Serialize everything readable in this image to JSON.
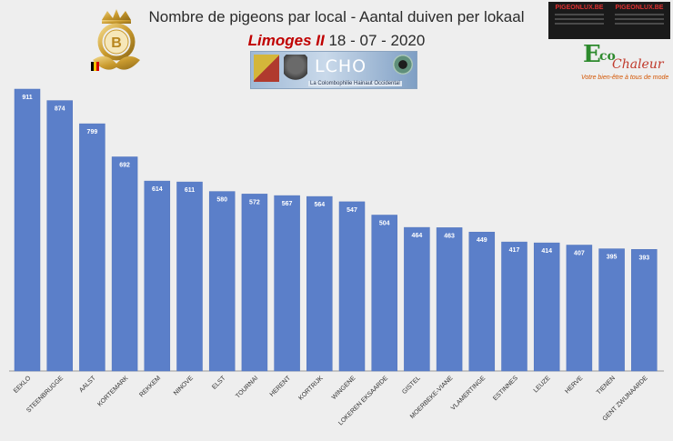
{
  "header": {
    "title": "Nombre de pigeons par local - Aantal duiven per lokaal",
    "race": "Limoges II",
    "date": "18 - 07 - 2020"
  },
  "logos": {
    "left_crest_letter": "B",
    "banner_name": "LCHO",
    "banner_tagline": "La Colombophilie Hainaut Occidental",
    "sponsor_left": "PIGEONLUX.BE",
    "sponsor_right": "PIGEONLUX.BE",
    "eco_e": "E",
    "eco_co": "co",
    "eco_chaleur": "Chaleur",
    "eco_slogan": "Votre bien-être à tous de mode"
  },
  "colors": {
    "bar": "#5b7fc9",
    "bar_edge": "#4f72bb"
  },
  "chart_data": {
    "type": "bar",
    "title": "Nombre de pigeons par local - Aantal duiven per lokaal",
    "categories": [
      "EEKLO",
      "STEENBRUGGE",
      "AALST",
      "KORTEMARK",
      "REKKEM",
      "NINOVE",
      "ELST",
      "TOURNAI",
      "HERENT",
      "KORTRIJK",
      "WINGENE",
      "LOKEREN EKSAARDE",
      "GISTEL",
      "MOERBEKE-VIANE",
      "VLAMERTINGE",
      "ESTINNES",
      "LEUZE",
      "HERVE",
      "TIENEN",
      "GENT ZWIJNAARDE"
    ],
    "values": [
      911,
      874,
      799,
      692,
      614,
      611,
      580,
      572,
      567,
      564,
      547,
      504,
      464,
      463,
      449,
      417,
      414,
      407,
      395,
      393
    ],
    "xlabel": "",
    "ylabel": "",
    "ylim": [
      0,
      1000
    ],
    "grid": false,
    "legend": "none",
    "data_labels": true
  }
}
